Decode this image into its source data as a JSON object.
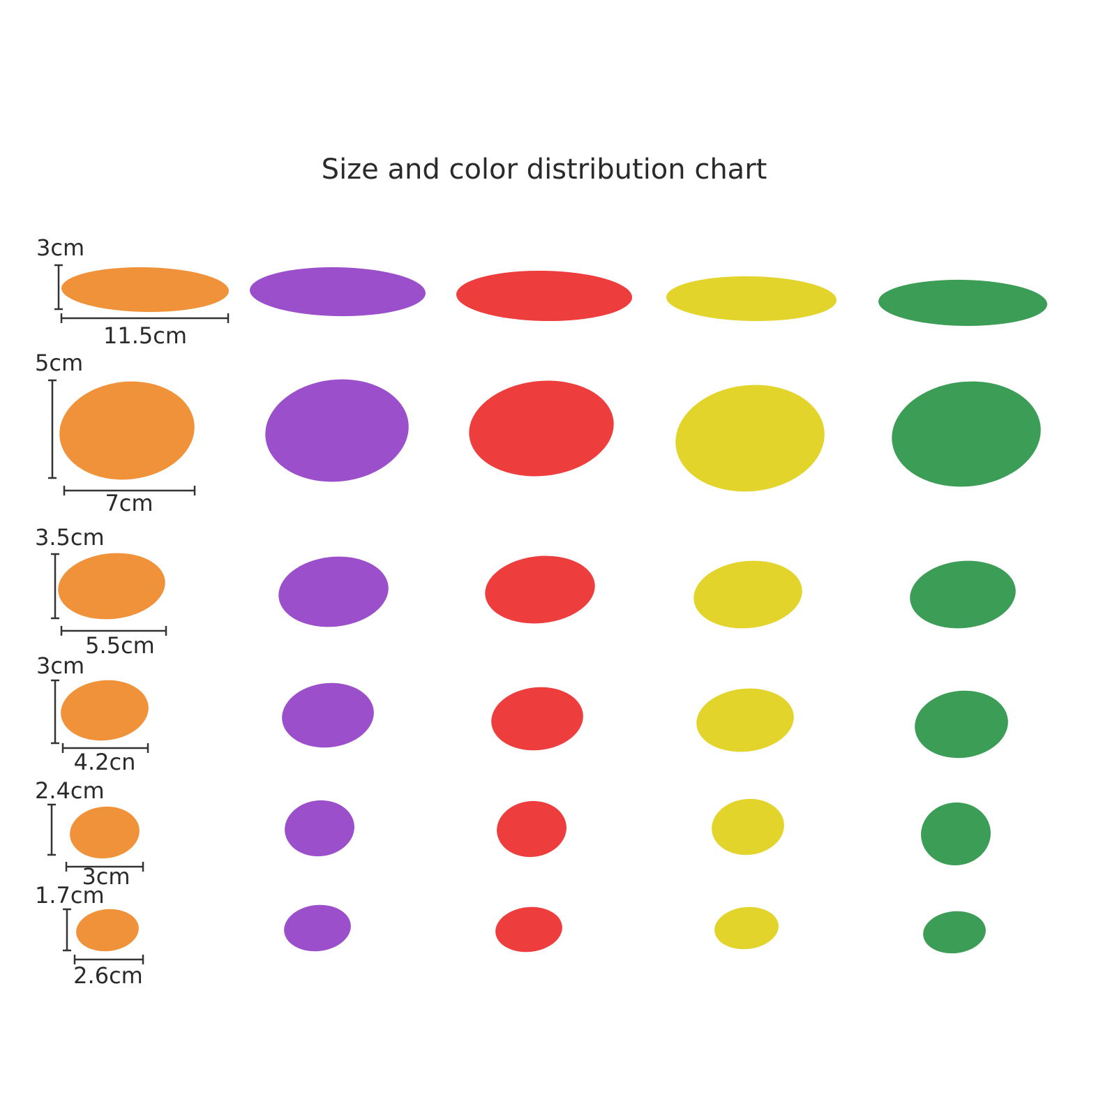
{
  "title": "Size and color distribution chart",
  "rows": [
    {
      "height": "3cm",
      "width": "11.5cm"
    },
    {
      "height": "5cm",
      "width": "7cm"
    },
    {
      "height": "3.5cm",
      "width": "5.5cm"
    },
    {
      "height": "3cm",
      "width": "4.2cn"
    },
    {
      "height": "2.4cm",
      "width": "3cm"
    },
    {
      "height": "1.7cm",
      "width": "2.6cm"
    }
  ]
}
